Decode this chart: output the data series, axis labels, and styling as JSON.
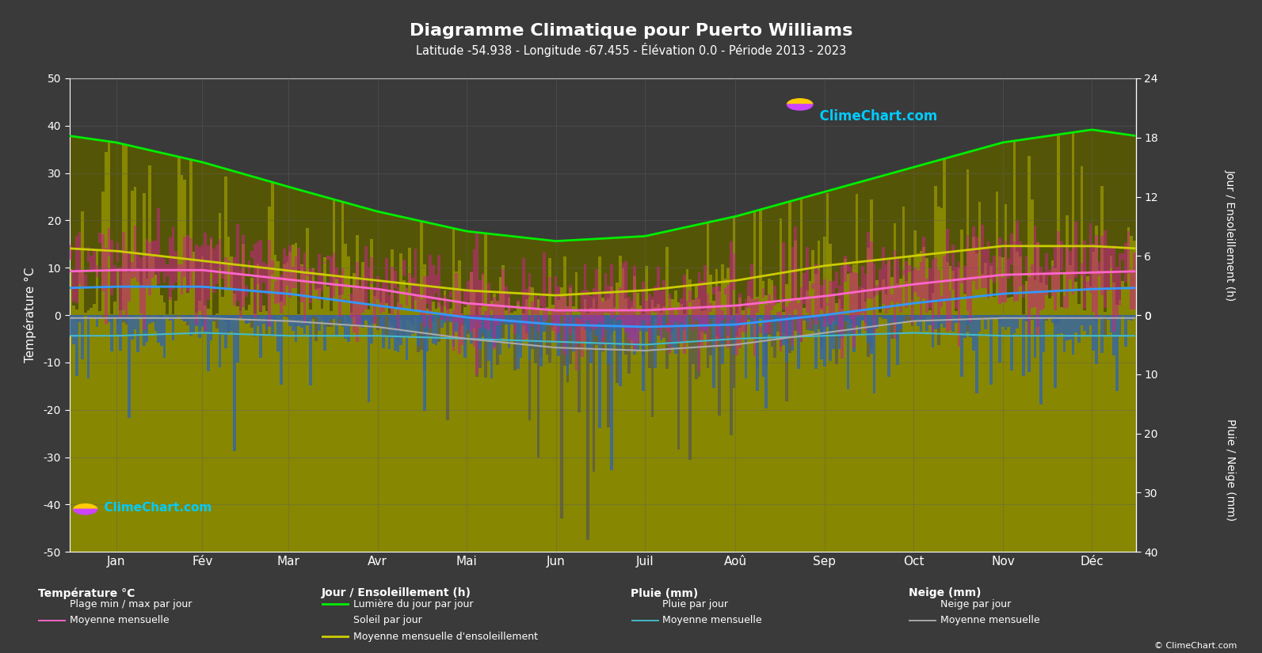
{
  "title": "Diagramme Climatique pour Puerto Williams",
  "subtitle": "Latitude -54.938 - Longitude -67.455 - Élévation 0.0 - Période 2013 - 2023",
  "bg_color": "#3a3a3a",
  "text_color": "#ffffff",
  "grid_color": "#606060",
  "months": [
    "Jan",
    "Fév",
    "Mar",
    "Avr",
    "Mai",
    "Jun",
    "Juil",
    "Aoû",
    "Sep",
    "Oct",
    "Nov",
    "Déc"
  ],
  "temp_ylim": [
    -50,
    50
  ],
  "temp_ticks": [
    -50,
    -40,
    -30,
    -20,
    -10,
    0,
    10,
    20,
    30,
    40,
    50
  ],
  "right_top_ticks": [
    0,
    6,
    12,
    18,
    24
  ],
  "right_bottom_ticks": [
    0,
    10,
    20,
    30,
    40
  ],
  "daylight_monthly": [
    17.5,
    15.5,
    13.0,
    10.5,
    8.5,
    7.5,
    8.0,
    10.0,
    12.5,
    15.0,
    17.5,
    18.8
  ],
  "sunshine_monthly": [
    6.5,
    5.5,
    4.5,
    3.5,
    2.5,
    2.0,
    2.5,
    3.5,
    5.0,
    6.0,
    7.0,
    7.0
  ],
  "temp_max_monthly": [
    14.0,
    14.0,
    12.0,
    9.0,
    6.0,
    4.5,
    4.5,
    5.5,
    8.0,
    10.5,
    12.5,
    13.5
  ],
  "temp_min_monthly": [
    6.0,
    6.0,
    4.5,
    2.0,
    -0.5,
    -2.0,
    -2.5,
    -2.0,
    0.0,
    2.5,
    4.5,
    5.5
  ],
  "temp_mean_monthly": [
    9.5,
    9.5,
    7.5,
    5.5,
    2.5,
    1.0,
    1.0,
    2.0,
    4.0,
    6.5,
    8.5,
    9.0
  ],
  "rain_mean_monthly": [
    3.5,
    3.0,
    3.5,
    3.5,
    4.0,
    4.5,
    5.0,
    4.0,
    3.5,
    3.0,
    3.5,
    3.5
  ],
  "snow_mean_monthly": [
    0.5,
    0.5,
    1.0,
    2.0,
    4.0,
    5.5,
    6.0,
    5.0,
    3.0,
    1.0,
    0.5,
    0.5
  ],
  "color_daylight_bar": "#5a5a00",
  "color_sunshine_bar": "#999900",
  "color_temp_bar": "#cc2288",
  "color_rain_bar": "#3366aa",
  "color_snow_bar": "#555555",
  "color_daylight_line": "#00ee00",
  "color_sunshine_line": "#cccc00",
  "color_temp_mean_line": "#ff66cc",
  "color_temp_min_line": "#3399ff",
  "color_rain_mean_line": "#44bbcc",
  "color_snow_mean_line": "#aaaaaa",
  "n_days": 365
}
